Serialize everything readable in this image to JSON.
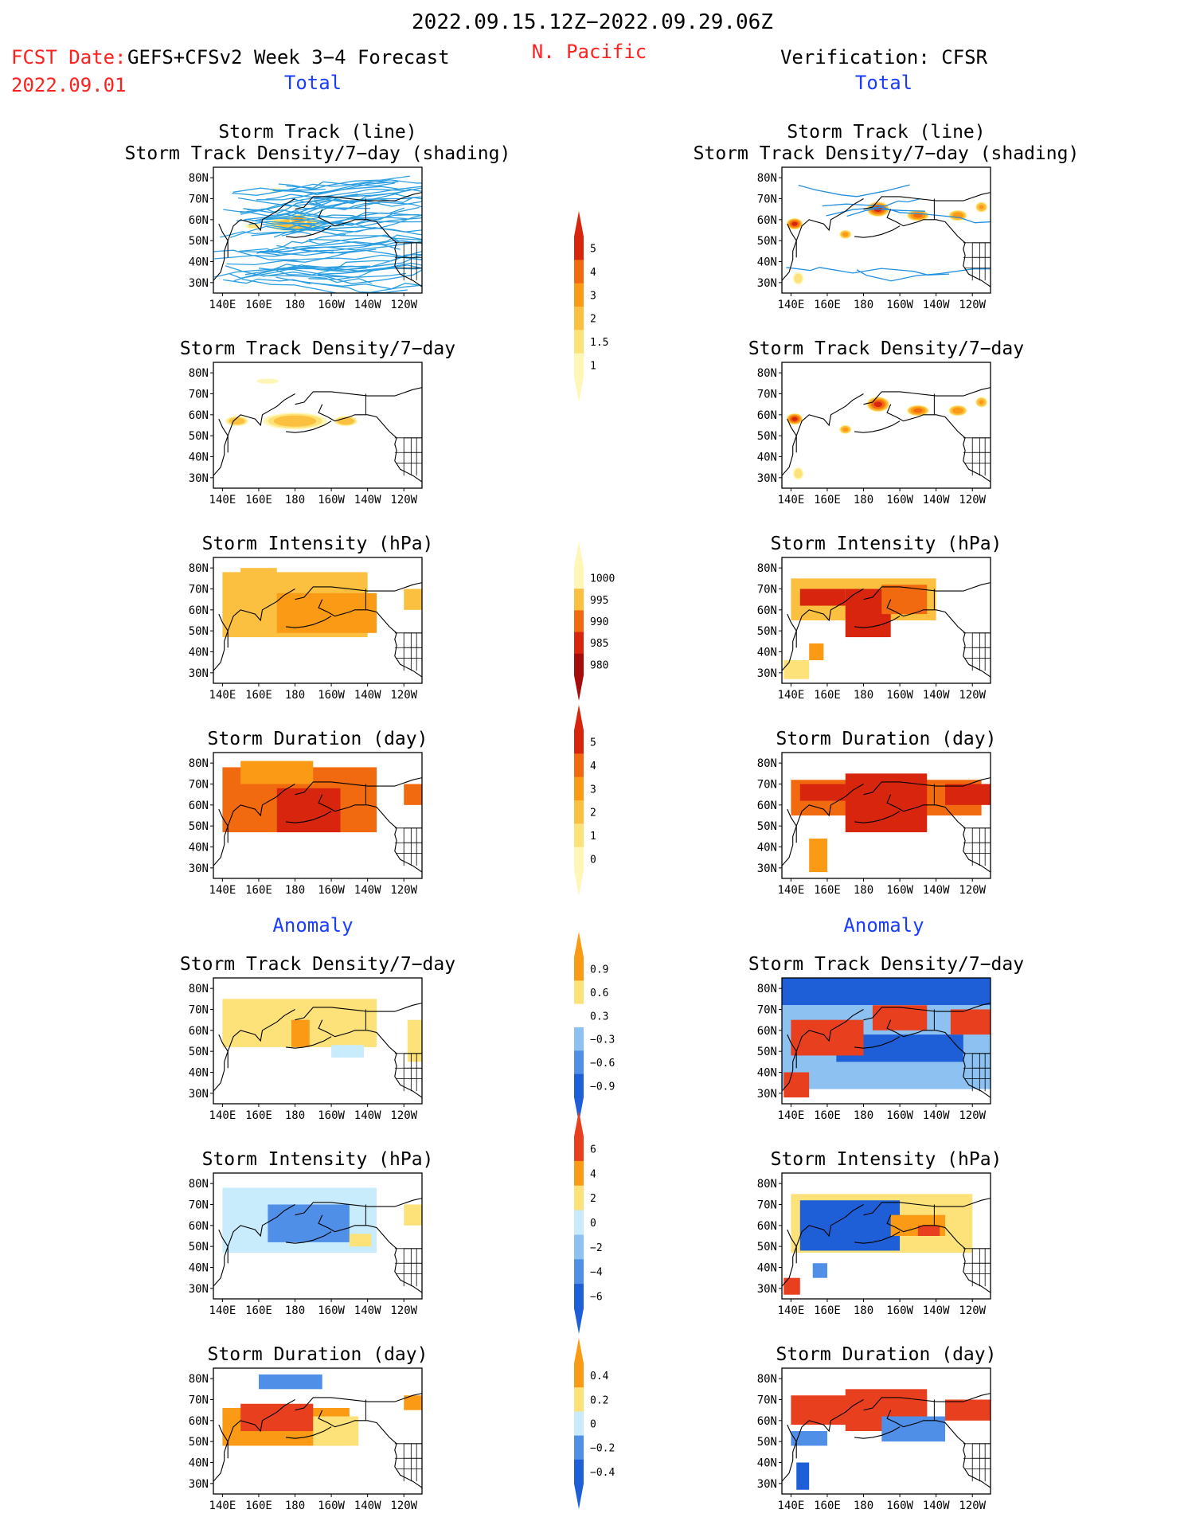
{
  "header": {
    "period": "2022.09.15.12Z−2022.09.29.06Z",
    "fcst_label": "FCST Date:",
    "forecast_title": "GEFS+CFSv2 Week 3−4 Forecast",
    "region": "N. Pacific",
    "verification": "Verification: CFSR",
    "fcst_date": "2022.09.01"
  },
  "section_labels": {
    "total": "Total",
    "anomaly": "Anomaly"
  },
  "colors": {
    "red_text": "#ff2020",
    "blue_text": "#1a3cff",
    "warm": [
      "#fff7b8",
      "#fde27a",
      "#fbc040",
      "#fb9a14",
      "#f26a10",
      "#d8260e",
      "#a50c0c"
    ],
    "anom": [
      "#1e5fd8",
      "#4f8fe8",
      "#8cc1f2",
      "#c8ecfb",
      "#ffffff",
      "#fde27a",
      "#fb9a14",
      "#e8401e"
    ],
    "track_forecast": "#2a9ee0",
    "track_verification": "#1f8fe0"
  },
  "chart_data": [
    {
      "type": "heatmap",
      "panel": "fcst-track",
      "title": [
        "Storm Track (line)",
        "Storm Track Density/7−day (shading)"
      ],
      "column": "GEFS+CFSv2 Week 3−4 Forecast",
      "section": "Total",
      "x_ticks": [
        "140E",
        "160E",
        "180",
        "160W",
        "140W",
        "120W"
      ],
      "y_ticks": [
        "80N",
        "70N",
        "60N",
        "50N",
        "40N",
        "30N"
      ],
      "xlim": [
        135,
        250
      ],
      "ylim": [
        25,
        85
      ],
      "colorbar": "density",
      "blobs": [
        [
          180,
          58,
          20,
          5,
          2.2
        ],
        [
          182,
          60,
          6,
          3,
          3.2
        ],
        [
          157,
          57,
          6,
          2,
          1.6
        ],
        [
          170,
          74,
          6,
          2,
          1.1
        ]
      ],
      "tracks": "many"
    },
    {
      "type": "heatmap",
      "panel": "cfsr-track",
      "title": [
        "Storm Track (line)",
        "Storm Track Density/7−day (shading)"
      ],
      "column": "Verification: CFSR",
      "section": "Total",
      "x_ticks": [
        "140E",
        "160E",
        "180",
        "160W",
        "140W",
        "120W"
      ],
      "y_ticks": [
        "80N",
        "70N",
        "60N",
        "50N",
        "40N",
        "30N"
      ],
      "xlim": [
        135,
        250
      ],
      "ylim": [
        25,
        85
      ],
      "colorbar": "density",
      "blobs": [
        [
          142,
          58,
          5,
          3,
          5.2
        ],
        [
          188,
          65,
          7,
          4,
          5.2
        ],
        [
          210,
          62,
          7,
          3,
          4.2
        ],
        [
          232,
          62,
          6,
          3,
          3.6
        ],
        [
          170,
          53,
          4,
          2.5,
          3.2
        ],
        [
          144,
          32,
          4,
          4,
          1.8
        ],
        [
          245,
          66,
          4,
          3,
          3
        ]
      ],
      "tracks": "few"
    },
    {
      "type": "heatmap",
      "panel": "fcst-density",
      "title": [
        "Storm Track Density/7−day"
      ],
      "column": "GEFS+CFSv2 Week 3−4 Forecast",
      "section": "Total",
      "x_ticks": [
        "140E",
        "160E",
        "180",
        "160W",
        "140W",
        "120W"
      ],
      "y_ticks": [
        "80N",
        "70N",
        "60N",
        "50N",
        "40N",
        "30N"
      ],
      "xlim": [
        135,
        250
      ],
      "ylim": [
        25,
        85
      ],
      "colorbar": "density",
      "blobs": [
        [
          180,
          57,
          22,
          5,
          2.4
        ],
        [
          148,
          57,
          8,
          3,
          2.4
        ],
        [
          208,
          57,
          8,
          3,
          2.6
        ],
        [
          165,
          76,
          10,
          2,
          1.2
        ]
      ]
    },
    {
      "type": "heatmap",
      "panel": "cfsr-density",
      "title": [
        "Storm Track Density/7−day"
      ],
      "column": "Verification: CFSR",
      "section": "Total",
      "x_ticks": [
        "140E",
        "160E",
        "180",
        "160W",
        "140W",
        "120W"
      ],
      "y_ticks": [
        "80N",
        "70N",
        "60N",
        "50N",
        "40N",
        "30N"
      ],
      "xlim": [
        135,
        250
      ],
      "ylim": [
        25,
        85
      ],
      "colorbar": "density",
      "blobs": [
        [
          142,
          58,
          5,
          3,
          5.2
        ],
        [
          188,
          65,
          7,
          4,
          5.2
        ],
        [
          210,
          62,
          7,
          3,
          4.2
        ],
        [
          232,
          62,
          6,
          3,
          3.6
        ],
        [
          170,
          53,
          4,
          2.5,
          3.2
        ],
        [
          144,
          32,
          4,
          4,
          1.8
        ],
        [
          245,
          66,
          4,
          3,
          3
        ]
      ]
    },
    {
      "type": "heatmap",
      "panel": "fcst-intensity",
      "title": [
        "Storm Intensity (hPa)"
      ],
      "column": "GEFS+CFSv2 Week 3−4 Forecast",
      "section": "Total",
      "x_ticks": [
        "140E",
        "160E",
        "180",
        "160W",
        "140W",
        "120W"
      ],
      "y_ticks": [
        "80N",
        "70N",
        "60N",
        "50N",
        "40N",
        "30N"
      ],
      "xlim": [
        135,
        250
      ],
      "ylim": [
        25,
        85
      ],
      "colorbar": "pressure",
      "cells": [
        [
          140,
          220,
          47,
          78,
          2
        ],
        [
          170,
          225,
          49,
          68,
          3
        ],
        [
          150,
          170,
          70,
          80,
          2
        ],
        [
          240,
          250,
          60,
          70,
          2
        ]
      ]
    },
    {
      "type": "heatmap",
      "panel": "cfsr-intensity",
      "title": [
        "Storm Intensity (hPa)"
      ],
      "column": "Verification: CFSR",
      "section": "Total",
      "x_ticks": [
        "140E",
        "160E",
        "180",
        "160W",
        "140W",
        "120W"
      ],
      "y_ticks": [
        "80N",
        "70N",
        "60N",
        "50N",
        "40N",
        "30N"
      ],
      "xlim": [
        135,
        250
      ],
      "ylim": [
        25,
        85
      ],
      "colorbar": "pressure",
      "cells": [
        [
          140,
          220,
          55,
          75,
          2
        ],
        [
          145,
          170,
          62,
          70,
          5
        ],
        [
          170,
          195,
          47,
          70,
          5
        ],
        [
          190,
          215,
          58,
          72,
          4
        ],
        [
          150,
          158,
          36,
          44,
          3
        ],
        [
          136,
          150,
          27,
          36,
          1
        ]
      ]
    },
    {
      "type": "heatmap",
      "panel": "fcst-duration",
      "title": [
        "Storm Duration (day)"
      ],
      "column": "GEFS+CFSv2 Week 3−4 Forecast",
      "section": "Total",
      "x_ticks": [
        "140E",
        "160E",
        "180",
        "160W",
        "140W",
        "120W"
      ],
      "y_ticks": [
        "80N",
        "70N",
        "60N",
        "50N",
        "40N",
        "30N"
      ],
      "xlim": [
        135,
        250
      ],
      "ylim": [
        25,
        85
      ],
      "colorbar": "duration",
      "cells": [
        [
          140,
          225,
          47,
          78,
          4
        ],
        [
          170,
          205,
          47,
          68,
          5
        ],
        [
          150,
          190,
          70,
          81,
          3
        ],
        [
          240,
          250,
          60,
          70,
          4
        ]
      ]
    },
    {
      "type": "heatmap",
      "panel": "cfsr-duration",
      "title": [
        "Storm Duration (day)"
      ],
      "column": "Verification: CFSR",
      "section": "Total",
      "x_ticks": [
        "140E",
        "160E",
        "180",
        "160W",
        "140W",
        "120W"
      ],
      "y_ticks": [
        "80N",
        "70N",
        "60N",
        "50N",
        "40N",
        "30N"
      ],
      "xlim": [
        135,
        250
      ],
      "ylim": [
        25,
        85
      ],
      "colorbar": "duration",
      "cells": [
        [
          140,
          245,
          55,
          72,
          4
        ],
        [
          145,
          170,
          62,
          70,
          5
        ],
        [
          170,
          215,
          47,
          75,
          5
        ],
        [
          150,
          160,
          28,
          44,
          3
        ],
        [
          225,
          250,
          60,
          70,
          5
        ]
      ]
    },
    {
      "type": "heatmap",
      "panel": "fcst-anom-density",
      "title": [
        "Storm Track Density/7−day"
      ],
      "column": "GEFS+CFSv2 Week 3−4 Forecast",
      "section": "Anomaly",
      "x_ticks": [
        "140E",
        "160E",
        "180",
        "160W",
        "140W",
        "120W"
      ],
      "y_ticks": [
        "80N",
        "70N",
        "60N",
        "50N",
        "40N",
        "30N"
      ],
      "xlim": [
        135,
        250
      ],
      "ylim": [
        25,
        85
      ],
      "colorbar": "anom-density",
      "cells": [
        [
          140,
          225,
          52,
          75,
          5
        ],
        [
          178,
          188,
          52,
          65,
          6
        ],
        [
          200,
          218,
          47,
          53,
          3
        ],
        [
          242,
          250,
          45,
          65,
          5
        ]
      ]
    },
    {
      "type": "heatmap",
      "panel": "cfsr-anom-density",
      "title": [
        "Storm Track Density/7−day"
      ],
      "column": "Verification: CFSR",
      "section": "Anomaly",
      "x_ticks": [
        "140E",
        "160E",
        "180",
        "160W",
        "140W",
        "120W"
      ],
      "y_ticks": [
        "80N",
        "70N",
        "60N",
        "50N",
        "40N",
        "30N"
      ],
      "xlim": [
        135,
        250
      ],
      "ylim": [
        25,
        85
      ],
      "colorbar": "anom-density",
      "cells": [
        [
          135,
          250,
          72,
          85,
          0
        ],
        [
          135,
          250,
          32,
          72,
          2
        ],
        [
          165,
          235,
          45,
          58,
          0
        ],
        [
          140,
          180,
          48,
          65,
          7
        ],
        [
          185,
          215,
          60,
          72,
          7
        ],
        [
          228,
          250,
          58,
          70,
          7
        ],
        [
          136,
          150,
          28,
          40,
          7
        ]
      ]
    },
    {
      "type": "heatmap",
      "panel": "fcst-anom-intensity",
      "title": [
        "Storm Intensity (hPa)"
      ],
      "column": "GEFS+CFSv2 Week 3−4 Forecast",
      "section": "Anomaly",
      "x_ticks": [
        "140E",
        "160E",
        "180",
        "160W",
        "140W",
        "120W"
      ],
      "y_ticks": [
        "80N",
        "70N",
        "60N",
        "50N",
        "40N",
        "30N"
      ],
      "xlim": [
        135,
        250
      ],
      "ylim": [
        25,
        85
      ],
      "colorbar": "anom-intensity",
      "cells": [
        [
          140,
          225,
          47,
          78,
          3
        ],
        [
          165,
          210,
          52,
          70,
          1
        ],
        [
          240,
          250,
          60,
          70,
          5
        ],
        [
          210,
          222,
          50,
          56,
          5
        ]
      ]
    },
    {
      "type": "heatmap",
      "panel": "cfsr-anom-intensity",
      "title": [
        "Storm Intensity (hPa)"
      ],
      "column": "Verification: CFSR",
      "section": "Anomaly",
      "x_ticks": [
        "140E",
        "160E",
        "180",
        "160W",
        "140W",
        "120W"
      ],
      "y_ticks": [
        "80N",
        "70N",
        "60N",
        "50N",
        "40N",
        "30N"
      ],
      "xlim": [
        135,
        250
      ],
      "ylim": [
        25,
        85
      ],
      "colorbar": "anom-intensity",
      "cells": [
        [
          140,
          240,
          47,
          75,
          5
        ],
        [
          145,
          200,
          48,
          72,
          0
        ],
        [
          195,
          225,
          55,
          65,
          6
        ],
        [
          210,
          222,
          55,
          60,
          7
        ],
        [
          152,
          160,
          35,
          42,
          1
        ],
        [
          136,
          145,
          27,
          35,
          7
        ]
      ]
    },
    {
      "type": "heatmap",
      "panel": "fcst-anom-duration",
      "title": [
        "Storm Duration (day)"
      ],
      "column": "GEFS+CFSv2 Week 3−4 Forecast",
      "section": "Anomaly",
      "x_ticks": [
        "140E",
        "160E",
        "180",
        "160W",
        "140W",
        "120W"
      ],
      "y_ticks": [
        "80N",
        "70N",
        "60N",
        "50N",
        "40N",
        "30N"
      ],
      "xlim": [
        135,
        250
      ],
      "ylim": [
        25,
        85
      ],
      "colorbar": "anom-duration",
      "cells": [
        [
          140,
          210,
          48,
          66,
          6
        ],
        [
          150,
          190,
          55,
          68,
          7
        ],
        [
          190,
          215,
          48,
          62,
          5
        ],
        [
          160,
          195,
          75,
          82,
          1
        ],
        [
          240,
          250,
          65,
          72,
          6
        ]
      ]
    },
    {
      "type": "heatmap",
      "panel": "cfsr-anom-duration",
      "title": [
        "Storm Duration (day)"
      ],
      "column": "Verification: CFSR",
      "section": "Anomaly",
      "x_ticks": [
        "140E",
        "160E",
        "180",
        "160W",
        "140W",
        "120W"
      ],
      "y_ticks": [
        "80N",
        "70N",
        "60N",
        "50N",
        "40N",
        "30N"
      ],
      "xlim": [
        135,
        250
      ],
      "ylim": [
        25,
        85
      ],
      "colorbar": "anom-duration",
      "cells": [
        [
          140,
          215,
          58,
          72,
          7
        ],
        [
          170,
          215,
          55,
          75,
          7
        ],
        [
          190,
          225,
          50,
          62,
          1
        ],
        [
          140,
          160,
          48,
          55,
          1
        ],
        [
          143,
          150,
          27,
          40,
          0
        ],
        [
          225,
          250,
          60,
          70,
          7
        ]
      ]
    }
  ],
  "colorbars": [
    {
      "name": "density",
      "labels": [
        "5",
        "4",
        "3",
        "2",
        "1.5",
        "1"
      ],
      "arrow": "up"
    },
    {
      "name": "pressure",
      "labels": [
        "1000",
        "995",
        "990",
        "985",
        "980"
      ],
      "arrow": "down"
    },
    {
      "name": "duration",
      "labels": [
        "5",
        "4",
        "3",
        "2",
        "1",
        "0"
      ],
      "arrow": "up"
    },
    {
      "name": "anom-density",
      "labels": [
        "0.9",
        "0.6",
        "0.3",
        "−0.3",
        "−0.6",
        "−0.9"
      ],
      "arrow": "both"
    },
    {
      "name": "anom-intensity",
      "labels": [
        "6",
        "4",
        "2",
        "0",
        "−2",
        "−4",
        "−6"
      ],
      "arrow": "both"
    },
    {
      "name": "anom-duration",
      "labels": [
        "0.4",
        "0.2",
        "0",
        "−0.2",
        "−0.4"
      ],
      "arrow": "both"
    }
  ]
}
